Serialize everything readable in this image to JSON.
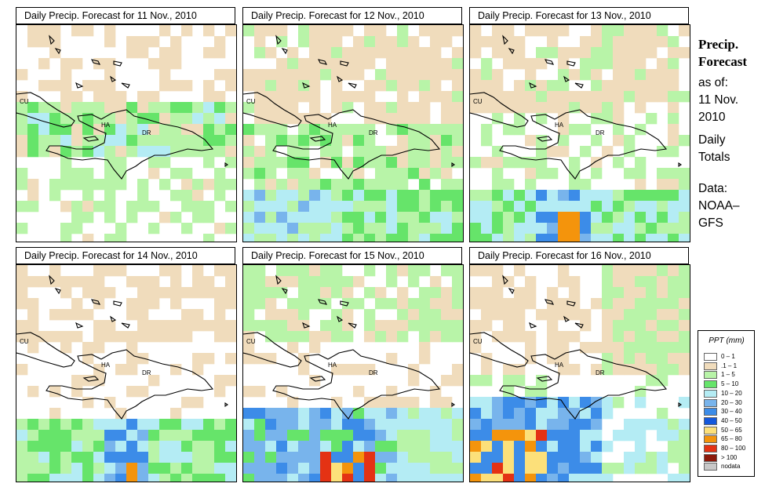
{
  "panels": [
    {
      "title": "Daily Precip. Forecast for  11 Nov., 2010",
      "seed": 11,
      "profile": "d1"
    },
    {
      "title": "Daily Precip. Forecast for  12 Nov., 2010",
      "seed": 12,
      "profile": "d2"
    },
    {
      "title": "Daily Precip. Forecast for  13 Nov., 2010",
      "seed": 13,
      "profile": "d3"
    },
    {
      "title": "Daily Precip. Forecast for  14 Nov., 2010",
      "seed": 14,
      "profile": "d4"
    },
    {
      "title": "Daily Precip. Forecast for  15 Nov., 2010",
      "seed": 15,
      "profile": "d5"
    },
    {
      "title": "Daily Precip. Forecast for  16 Nov., 2010",
      "seed": 16,
      "profile": "d6"
    }
  ],
  "map_labels": {
    "cuba": "CU",
    "haiti": "HA",
    "dominican_republic": "DR"
  },
  "sidebar": {
    "title_line1": "Precip.",
    "title_line2": "Forecast",
    "asof_line1": "as of:",
    "asof_line2": "11 Nov.",
    "asof_line3": "2010",
    "totals_line1": "Daily",
    "totals_line2": "Totals",
    "data_line1": "Data:",
    "data_line2": "NOAA–",
    "data_line3": "GFS"
  },
  "legend": {
    "title": "PPT (mm)",
    "items": [
      {
        "label": "0 – 1",
        "color": "#ffffff"
      },
      {
        "label": ".1 – 1",
        "color": "#f0dcbc"
      },
      {
        "label": "1 – 5",
        "color": "#b8f4a8"
      },
      {
        "label": "5 – 10",
        "color": "#66e46a"
      },
      {
        "label": "10 – 20",
        "color": "#b4ecf4"
      },
      {
        "label": "20 – 30",
        "color": "#78b4ec"
      },
      {
        "label": "30 – 40",
        "color": "#3c8ce8"
      },
      {
        "label": "40 – 50",
        "color": "#1458dc"
      },
      {
        "label": "50 – 65",
        "color": "#fce07a"
      },
      {
        "label": "65 – 80",
        "color": "#f4940c"
      },
      {
        "label": "80 – 100",
        "color": "#e43214"
      },
      {
        "label": "> 100",
        "color": "#8c1a0c"
      },
      {
        "label": "nodata",
        "color": "#c8c8c8"
      }
    ]
  }
}
